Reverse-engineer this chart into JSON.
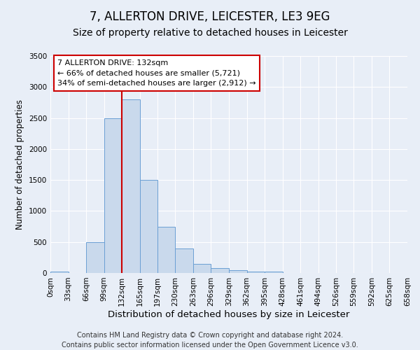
{
  "title": "7, ALLERTON DRIVE, LEICESTER, LE3 9EG",
  "subtitle": "Size of property relative to detached houses in Leicester",
  "xlabel": "Distribution of detached houses by size in Leicester",
  "ylabel": "Number of detached properties",
  "bin_edges": [
    0,
    33,
    66,
    99,
    132,
    165,
    197,
    230,
    263,
    296,
    329,
    362,
    395,
    428,
    461,
    494,
    526,
    559,
    592,
    625,
    658
  ],
  "bar_heights": [
    25,
    0,
    500,
    2500,
    2800,
    1500,
    750,
    400,
    150,
    75,
    50,
    25,
    25,
    0,
    0,
    0,
    0,
    0,
    0,
    0
  ],
  "bar_color": "#c9d9ec",
  "bar_edge_color": "#6b9fd4",
  "red_line_x": 132,
  "ylim": [
    0,
    3500
  ],
  "yticks": [
    0,
    500,
    1000,
    1500,
    2000,
    2500,
    3000,
    3500
  ],
  "annotation_title": "7 ALLERTON DRIVE: 132sqm",
  "annotation_line1": "← 66% of detached houses are smaller (5,721)",
  "annotation_line2": "34% of semi-detached houses are larger (2,912) →",
  "annotation_box_color": "#ffffff",
  "annotation_box_edge": "#cc0000",
  "footer_line1": "Contains HM Land Registry data © Crown copyright and database right 2024.",
  "footer_line2": "Contains public sector information licensed under the Open Government Licence v3.0.",
  "background_color": "#e8eef7",
  "plot_bg_color": "#e8eef7",
  "title_fontsize": 12,
  "subtitle_fontsize": 10,
  "xlabel_fontsize": 9.5,
  "ylabel_fontsize": 8.5,
  "tick_fontsize": 7.5,
  "footer_fontsize": 7,
  "ann_fontsize": 8
}
